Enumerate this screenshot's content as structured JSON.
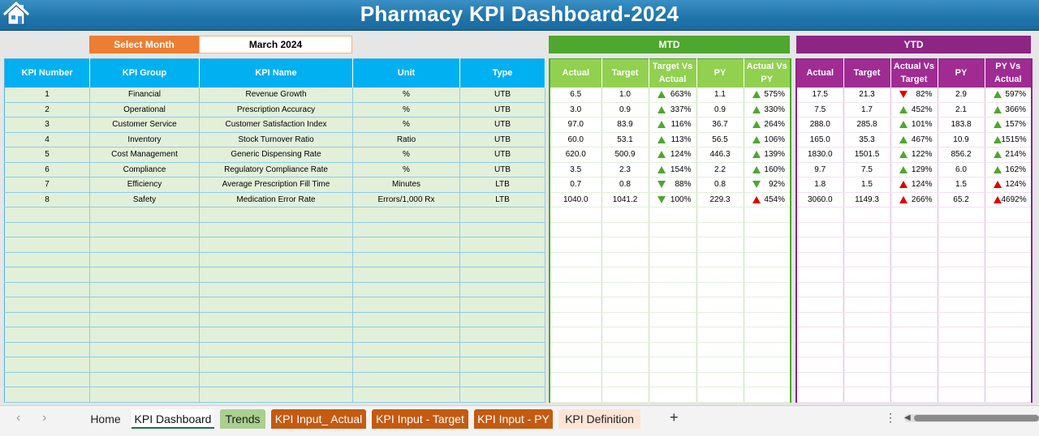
{
  "header": {
    "title": "Pharmacy KPI Dashboard-2024"
  },
  "selector": {
    "label": "Select Month",
    "value": "March 2024"
  },
  "sections": {
    "mtd": "MTD",
    "ytd": "YTD"
  },
  "left_columns": [
    "KPI Number",
    "KPI Group",
    "KPI Name",
    "Unit",
    "Type"
  ],
  "mtd_columns": [
    "Actual",
    "Target",
    "Target Vs Actual",
    "PY",
    "Actual Vs PY"
  ],
  "ytd_columns": [
    "Actual",
    "Target",
    "Actual Vs Target",
    "PY",
    "PY Vs Actual"
  ],
  "kpis": [
    {
      "num": "1",
      "group": "Financial",
      "name": "Revenue Growth",
      "unit": "%",
      "type": "UTB"
    },
    {
      "num": "2",
      "group": "Operational",
      "name": "Prescription Accuracy",
      "unit": "%",
      "type": "UTB"
    },
    {
      "num": "3",
      "group": "Customer Service",
      "name": "Customer Satisfaction Index",
      "unit": "%",
      "type": "UTB"
    },
    {
      "num": "4",
      "group": "Inventory",
      "name": "Stock Turnover Ratio",
      "unit": "Ratio",
      "type": "UTB"
    },
    {
      "num": "5",
      "group": "Cost Management",
      "name": "Generic Dispensing Rate",
      "unit": "%",
      "type": "UTB"
    },
    {
      "num": "6",
      "group": "Compliance",
      "name": "Regulatory Compliance Rate",
      "unit": "%",
      "type": "UTB"
    },
    {
      "num": "7",
      "group": "Efficiency",
      "name": "Average Prescription Fill Time",
      "unit": "Minutes",
      "type": "LTB"
    },
    {
      "num": "8",
      "group": "Safety",
      "name": "Medication Error Rate",
      "unit": "Errors/1,000 Rx",
      "type": "LTB"
    }
  ],
  "mtd": [
    {
      "actual": "6.5",
      "target": "1.0",
      "tva": "663%",
      "tva_icon": "up-green",
      "py": "1.1",
      "avp": "575%",
      "avp_icon": "up-green"
    },
    {
      "actual": "3.0",
      "target": "0.9",
      "tva": "337%",
      "tva_icon": "up-green",
      "py": "0.9",
      "avp": "330%",
      "avp_icon": "up-green"
    },
    {
      "actual": "97.0",
      "target": "83.9",
      "tva": "116%",
      "tva_icon": "up-green",
      "py": "36.7",
      "avp": "264%",
      "avp_icon": "up-green"
    },
    {
      "actual": "60.0",
      "target": "53.1",
      "tva": "113%",
      "tva_icon": "up-green",
      "py": "56.5",
      "avp": "106%",
      "avp_icon": "up-green"
    },
    {
      "actual": "620.0",
      "target": "500.9",
      "tva": "124%",
      "tva_icon": "up-green",
      "py": "446.3",
      "avp": "139%",
      "avp_icon": "up-green"
    },
    {
      "actual": "3.5",
      "target": "2.3",
      "tva": "154%",
      "tva_icon": "up-green",
      "py": "2.2",
      "avp": "160%",
      "avp_icon": "up-green"
    },
    {
      "actual": "0.7",
      "target": "0.8",
      "tva": "88%",
      "tva_icon": "down-green",
      "py": "0.8",
      "avp": "92%",
      "avp_icon": "down-green"
    },
    {
      "actual": "1040.0",
      "target": "1041.2",
      "tva": "100%",
      "tva_icon": "down-green",
      "py": "229.3",
      "avp": "454%",
      "avp_icon": "up-red"
    }
  ],
  "ytd": [
    {
      "actual": "17.5",
      "target": "21.3",
      "avt": "82%",
      "avt_icon": "down-red",
      "py": "2.9",
      "pva": "597%",
      "pva_icon": "up-green"
    },
    {
      "actual": "7.5",
      "target": "1.7",
      "avt": "452%",
      "avt_icon": "up-green",
      "py": "2.1",
      "pva": "366%",
      "pva_icon": "up-green"
    },
    {
      "actual": "288.0",
      "target": "285.8",
      "avt": "101%",
      "avt_icon": "up-green",
      "py": "183.8",
      "pva": "157%",
      "pva_icon": "up-green"
    },
    {
      "actual": "165.0",
      "target": "35.3",
      "avt": "467%",
      "avt_icon": "up-green",
      "py": "10.9",
      "pva": "1515%",
      "pva_icon": "up-green"
    },
    {
      "actual": "1830.0",
      "target": "1501.5",
      "avt": "122%",
      "avt_icon": "up-green",
      "py": "856.2",
      "pva": "214%",
      "pva_icon": "up-green"
    },
    {
      "actual": "9.7",
      "target": "7.5",
      "avt": "129%",
      "avt_icon": "up-green",
      "py": "6.0",
      "pva": "162%",
      "pva_icon": "up-green"
    },
    {
      "actual": "1.8",
      "target": "1.5",
      "avt": "124%",
      "avt_icon": "up-red",
      "py": "1.5",
      "pva": "124%",
      "pva_icon": "up-red"
    },
    {
      "actual": "3060.0",
      "target": "1149.3",
      "avt": "266%",
      "avt_icon": "up-red",
      "py": "65.2",
      "pva": "4692%",
      "pva_icon": "up-red"
    }
  ],
  "tabs": [
    {
      "label": "Home",
      "icon": "home-icon"
    },
    {
      "label": "KPI Dashboard"
    },
    {
      "label": "Trends"
    },
    {
      "label": "KPI Input_ Actual"
    },
    {
      "label": "KPI Input - Target"
    },
    {
      "label": "KPI Input - PY"
    },
    {
      "label": "KPI Definition"
    }
  ],
  "colors": {
    "orange": "#ed7d31",
    "mtd_green": "#4ea72e",
    "ytd_purple": "#8e2585",
    "header_blue": "#00b0f0",
    "banner": "#1f74aa"
  }
}
